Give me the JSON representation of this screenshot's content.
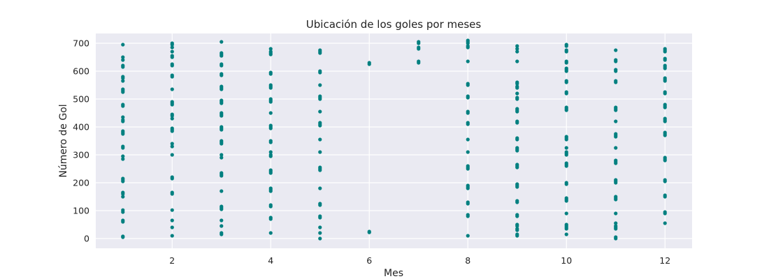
{
  "chart_data": {
    "type": "scatter",
    "title": "Ubicación de los goles por meses",
    "xlabel": "Mes",
    "ylabel": "Número de Gol",
    "xlim": [
      0.45,
      12.55
    ],
    "ylim": [
      -35,
      735
    ],
    "xticks": [
      2,
      4,
      6,
      8,
      10,
      12
    ],
    "yticks": [
      0,
      100,
      200,
      300,
      400,
      500,
      600,
      700
    ],
    "grid": true,
    "background_color": "#eaeaf2",
    "grid_color": "#ffffff",
    "point_color": "#008080",
    "points": [
      {
        "x": 1,
        "y": [
          5,
          8,
          60,
          65,
          95,
          102,
          150,
          160,
          165,
          205,
          210,
          215,
          285,
          295,
          325,
          330,
          375,
          380,
          385,
          420,
          425,
          435,
          475,
          480,
          525,
          530,
          535,
          565,
          575,
          580,
          615,
          620,
          640,
          650,
          695
        ]
      },
      {
        "x": 2,
        "y": [
          10,
          40,
          65,
          102,
          160,
          165,
          215,
          220,
          300,
          330,
          340,
          385,
          390,
          395,
          430,
          440,
          445,
          480,
          485,
          490,
          535,
          580,
          585,
          620,
          625,
          650,
          655,
          670,
          685,
          695,
          700
        ]
      },
      {
        "x": 3,
        "y": [
          15,
          20,
          45,
          65,
          105,
          110,
          115,
          170,
          225,
          230,
          235,
          290,
          300,
          340,
          345,
          350,
          390,
          395,
          400,
          440,
          445,
          450,
          485,
          490,
          495,
          535,
          540,
          545,
          585,
          590,
          620,
          625,
          655,
          660,
          665,
          705
        ]
      },
      {
        "x": 4,
        "y": [
          20,
          70,
          75,
          115,
          120,
          170,
          175,
          180,
          235,
          240,
          245,
          295,
          300,
          310,
          345,
          350,
          395,
          400,
          405,
          450,
          490,
          495,
          500,
          540,
          545,
          550,
          590,
          595,
          660,
          665,
          670,
          680
        ]
      },
      {
        "x": 5,
        "y": [
          0,
          20,
          40,
          75,
          80,
          120,
          125,
          180,
          245,
          250,
          255,
          310,
          355,
          405,
          410,
          415,
          455,
          500,
          505,
          510,
          550,
          595,
          600,
          665,
          670,
          675
        ]
      },
      {
        "x": 6,
        "y": [
          22,
          25,
          625,
          630
        ]
      },
      {
        "x": 7,
        "y": [
          630,
          635,
          680,
          685,
          700,
          705
        ]
      },
      {
        "x": 8,
        "y": [
          10,
          80,
          85,
          125,
          130,
          180,
          185,
          190,
          250,
          255,
          260,
          310,
          355,
          410,
          415,
          450,
          455,
          505,
          510,
          550,
          555,
          635,
          685,
          690,
          700,
          705,
          710
        ]
      },
      {
        "x": 9,
        "y": [
          10,
          15,
          30,
          35,
          45,
          50,
          80,
          85,
          130,
          135,
          185,
          190,
          195,
          255,
          260,
          265,
          315,
          320,
          325,
          355,
          360,
          415,
          420,
          455,
          460,
          465,
          500,
          505,
          520,
          540,
          545,
          555,
          560,
          635,
          670,
          680,
          690
        ]
      },
      {
        "x": 10,
        "y": [
          15,
          35,
          40,
          45,
          50,
          90,
          135,
          140,
          145,
          195,
          200,
          260,
          265,
          270,
          300,
          305,
          310,
          325,
          355,
          360,
          365,
          460,
          465,
          470,
          520,
          525,
          560,
          565,
          600,
          605,
          610,
          630,
          635,
          670,
          675,
          690,
          695
        ]
      },
      {
        "x": 11,
        "y": [
          0,
          5,
          35,
          40,
          45,
          55,
          90,
          140,
          145,
          150,
          200,
          205,
          210,
          270,
          275,
          280,
          325,
          365,
          370,
          375,
          420,
          460,
          465,
          470,
          560,
          565,
          600,
          605,
          635,
          640,
          675
        ]
      },
      {
        "x": 12,
        "y": [
          55,
          90,
          95,
          150,
          155,
          205,
          210,
          280,
          285,
          290,
          370,
          375,
          380,
          420,
          425,
          430,
          470,
          475,
          480,
          520,
          525,
          565,
          570,
          575,
          610,
          615,
          620,
          640,
          645,
          670,
          675,
          680
        ]
      }
    ]
  }
}
